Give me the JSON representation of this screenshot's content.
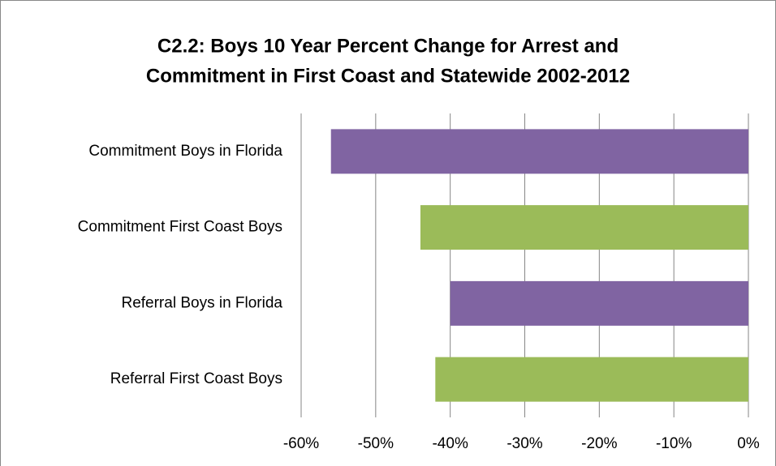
{
  "chart_data": {
    "type": "barh",
    "title": [
      "C2.2: Boys 10 Year Percent Change for Arrest and",
      "Commitment  in First Coast and Statewide 2002-2012"
    ],
    "categories": [
      "Commitment Boys in Florida",
      "Commitment First Coast Boys",
      "Referral Boys in Florida",
      "Referral First Coast Boys"
    ],
    "values": [
      -56,
      -44,
      -40,
      -42
    ],
    "colors": [
      "#8064a2",
      "#9bbb59",
      "#8064a2",
      "#9bbb59"
    ],
    "xlim": [
      -60,
      0
    ],
    "xticks": [
      {
        "value": -60,
        "label": "-60%"
      },
      {
        "value": -50,
        "label": "-50%"
      },
      {
        "value": -40,
        "label": "-40%"
      },
      {
        "value": -30,
        "label": "-30%"
      },
      {
        "value": -20,
        "label": "-20%"
      },
      {
        "value": -10,
        "label": "-10%"
      },
      {
        "value": 0,
        "label": "0%"
      }
    ],
    "grid": true
  }
}
